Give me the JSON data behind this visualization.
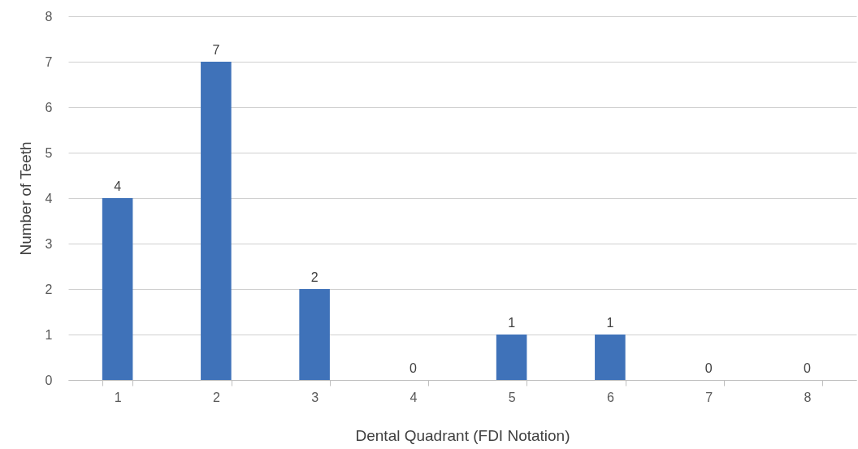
{
  "chart_data": {
    "type": "bar",
    "xlabel": "Dental Quadrant (FDI Notation)",
    "ylabel": "Number of Teeth",
    "categories": [
      "1",
      "2",
      "3",
      "4",
      "5",
      "6",
      "7",
      "8"
    ],
    "values": [
      4,
      7,
      2,
      0,
      1,
      1,
      0,
      0
    ],
    "color": "#3f72b9",
    "ylim": [
      0,
      8
    ],
    "yticks": [
      0,
      1,
      2,
      3,
      4,
      5,
      6,
      7,
      8
    ],
    "grid": "y",
    "data_labels": true
  }
}
